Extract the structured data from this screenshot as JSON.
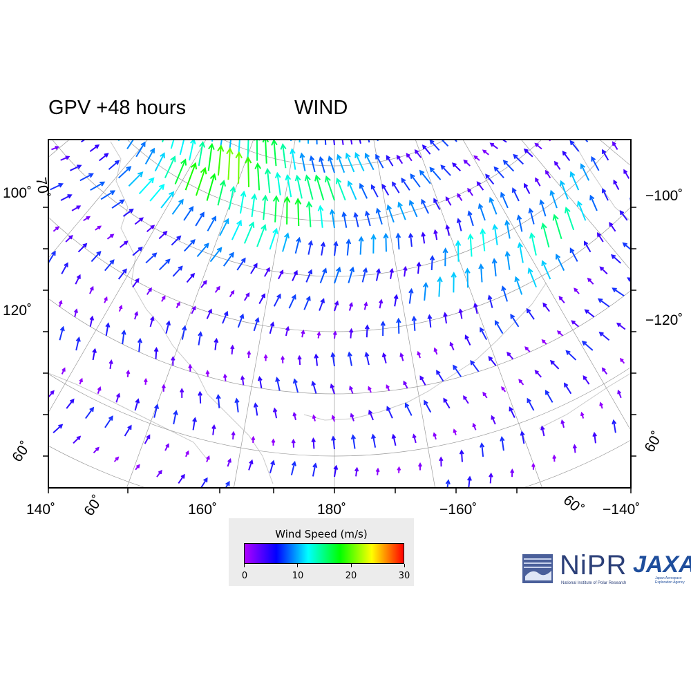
{
  "title": {
    "left": "GPV +48 hours",
    "right": "WIND"
  },
  "map": {
    "bottom_lon_labels": [
      "140˚",
      "160˚",
      "180˚",
      "−160˚",
      "−140˚"
    ],
    "left_lon_labels": [
      "100˚",
      "120˚"
    ],
    "right_lon_labels": [
      "−100˚",
      "−120˚"
    ],
    "lat_labels": [
      "70˚",
      "60˚",
      "60˚",
      "60˚",
      "60˚"
    ],
    "wind_colorscale": [
      "#b000ff",
      "#0000ff",
      "#00ffff",
      "#00ff00",
      "#ffff00",
      "#ff0000"
    ]
  },
  "legend": {
    "title": "Wind Speed (m/s)",
    "ticks": [
      "0",
      "10",
      "20",
      "30"
    ],
    "range": [
      0,
      30
    ]
  },
  "logos": {
    "nipr": {
      "name": "NiPR",
      "subtitle": "National Institute of Polar Research"
    },
    "jaxa": {
      "name": "JAXA",
      "subtitle": "Japan Aerospace Exploration Agency"
    }
  }
}
